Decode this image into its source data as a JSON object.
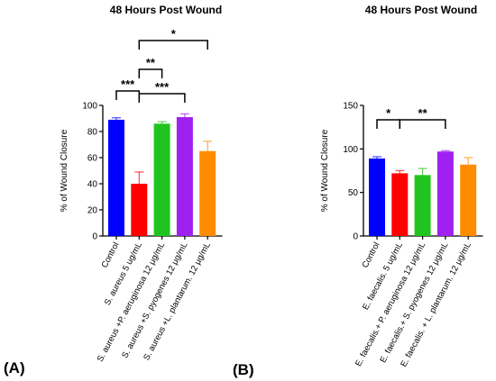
{
  "figure": {
    "panel_labels": [
      "(A)",
      "(B)"
    ]
  },
  "chart_data": [
    {
      "type": "bar",
      "title": "48 Hours Post Wound",
      "xlabel": "",
      "ylabel": "% of Wound Closure",
      "ylim": [
        0,
        100
      ],
      "yticks": [
        0,
        20,
        40,
        60,
        80,
        100
      ],
      "categories": [
        "Control",
        "S. aureus 5 ug/mL",
        "S. aureus +P. aeruginosa 12 μg/mL",
        "S. aureus +S. pyogenes 12 μg/mL",
        "S. aureus +L. plantarum. 12 μg/mL"
      ],
      "values": [
        89,
        40,
        86,
        91,
        65
      ],
      "errors": [
        1.5,
        9,
        1.5,
        2.5,
        7.5
      ],
      "colors": [
        "#0000ff",
        "#ff0000",
        "#21c41f",
        "#a020f0",
        "#ff8c00"
      ],
      "significance": [
        {
          "from": 0,
          "to": 1,
          "label": "***"
        },
        {
          "from": 1,
          "to": 2,
          "label": "**"
        },
        {
          "from": 1,
          "to": 3,
          "label": "***"
        },
        {
          "from": 1,
          "to": 4,
          "label": "*"
        }
      ]
    },
    {
      "type": "bar",
      "title": "48 Hours Post Wound",
      "xlabel": "",
      "ylabel": "% of Wound Closure",
      "ylim": [
        0,
        150
      ],
      "yticks": [
        0,
        50,
        100,
        150
      ],
      "categories": [
        "Control",
        "E. faecalis. 5 ug/mL",
        "E. faecalis.+ P. aeruginosa 12 μg/mL",
        "E. faecalis.+ S. pyogenes 12 μg/mL",
        "E. faecalis. + L. plantarum. 12 μg/mL"
      ],
      "values": [
        89,
        72,
        70,
        97,
        82
      ],
      "errors": [
        2,
        3,
        7.5,
        1,
        8
      ],
      "colors": [
        "#0000ff",
        "#ff0000",
        "#21c41f",
        "#a020f0",
        "#ff8c00"
      ],
      "significance": [
        {
          "from": 0,
          "to": 1,
          "label": "*"
        },
        {
          "from": 1,
          "to": 3,
          "label": "**"
        }
      ]
    }
  ]
}
